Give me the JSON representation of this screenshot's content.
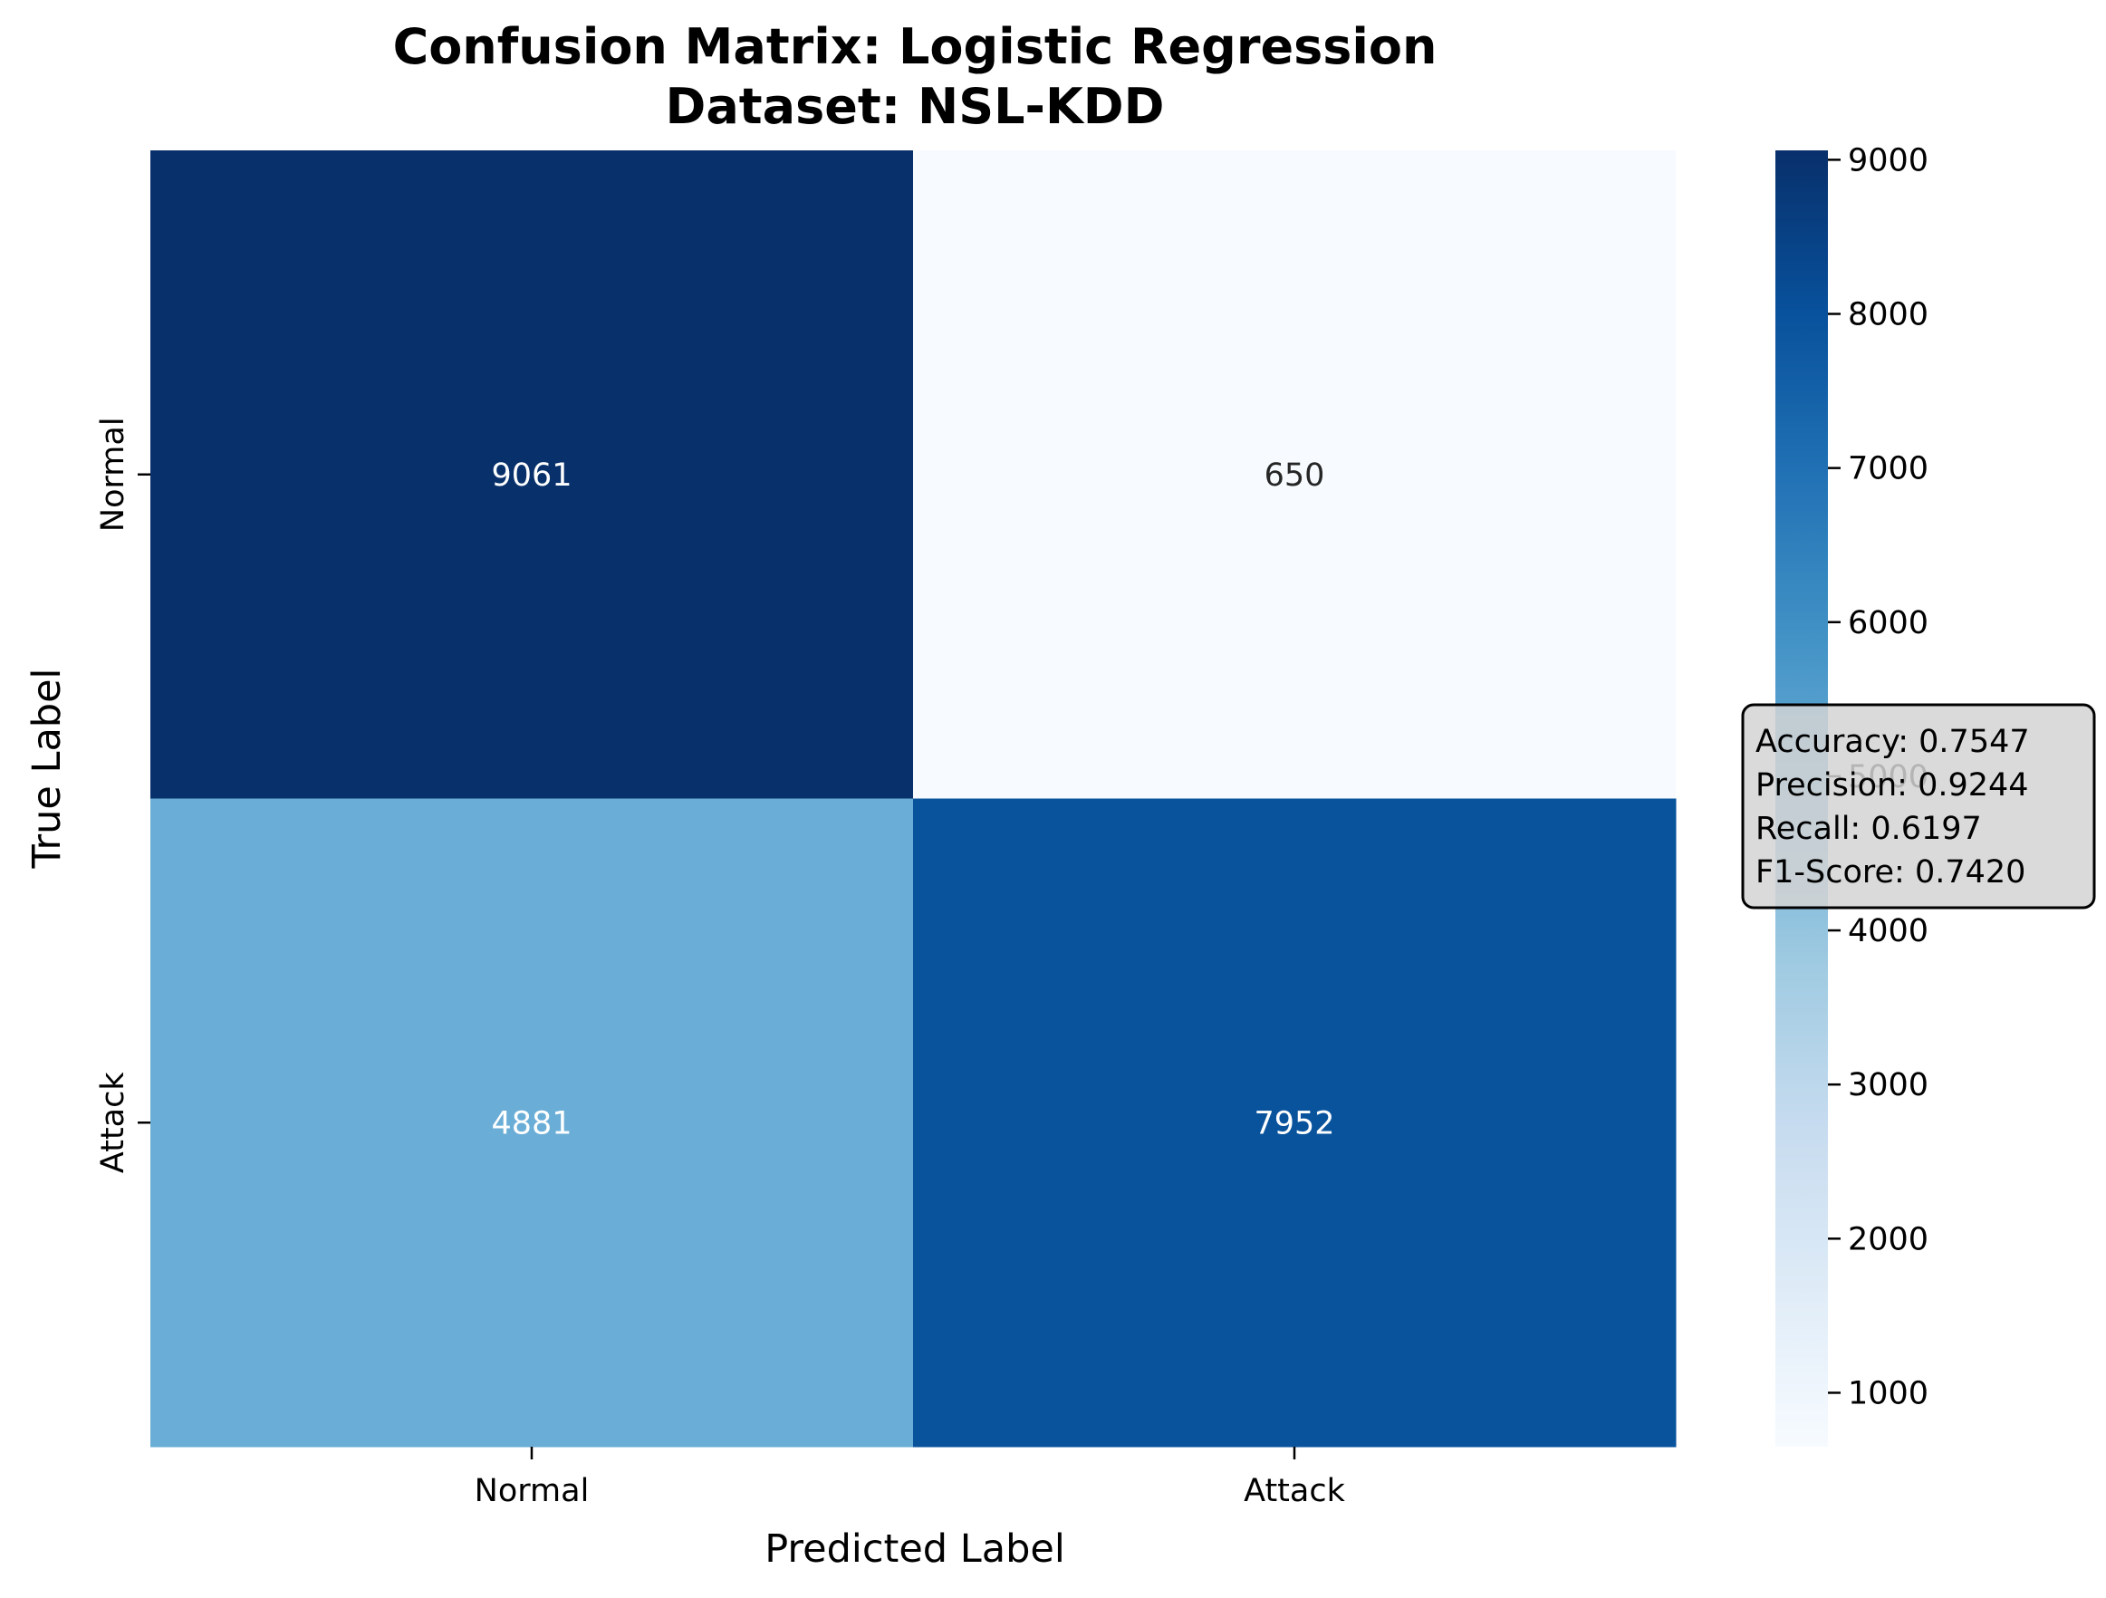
{
  "chart_data": {
    "type": "heatmap",
    "title": "Confusion Matrix: Logistic Regression",
    "subtitle": "Dataset: NSL-KDD",
    "xlabel": "Predicted Label",
    "ylabel": "True Label",
    "x_categories": [
      "Normal",
      "Attack"
    ],
    "y_categories": [
      "Normal",
      "Attack"
    ],
    "values": [
      [
        9061,
        650
      ],
      [
        4881,
        7952
      ]
    ],
    "colormap": "Blues",
    "colorbar": {
      "range": [
        650,
        9061
      ],
      "ticks": [
        1000,
        2000,
        3000,
        4000,
        5000,
        6000,
        7000,
        8000,
        9000
      ],
      "tick_labels": [
        "1000",
        "2000",
        "3000",
        "4000",
        "5000",
        "6000",
        "7000",
        "8000",
        "9000"
      ]
    },
    "metrics": [
      "Accuracy: 0.7547",
      "Precision: 0.9244",
      "Recall: 0.6197",
      "F1-Score: 0.7420"
    ],
    "colors": {
      "cell_high": "#08306b",
      "cell_low": "#f7fbff",
      "metrics_box_fill": "#d3d3d3",
      "metrics_box_edge": "#000000"
    }
  }
}
